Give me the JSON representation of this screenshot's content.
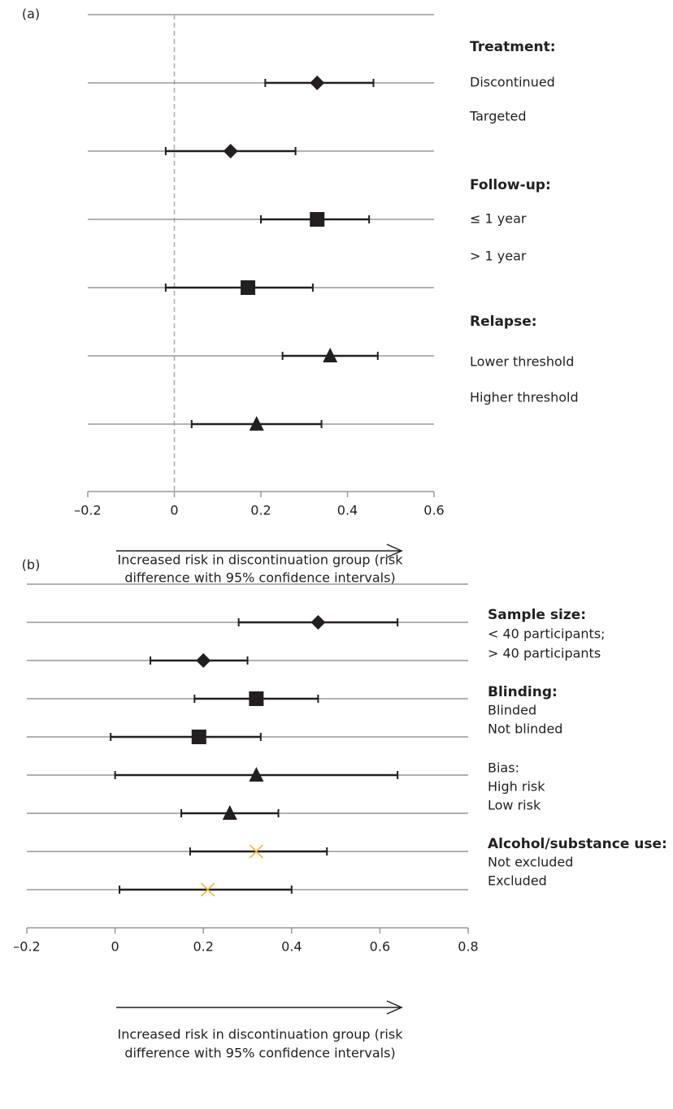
{
  "chart_data": [
    {
      "type": "forest",
      "panel_label": "(a)",
      "values": [
        0.33,
        0.13,
        0.33,
        0.17,
        0.36,
        0.19
      ],
      "lower": [
        0.21,
        -0.02,
        0.2,
        -0.02,
        0.25,
        0.04
      ],
      "upper": [
        0.46,
        0.28,
        0.45,
        0.32,
        0.47,
        0.34
      ],
      "markers": [
        "diamond",
        "diamond",
        "square",
        "square",
        "triangle",
        "triangle"
      ],
      "colors": [
        "#231f20",
        "#231f20",
        "#231f20",
        "#231f20",
        "#231f20",
        "#231f20"
      ],
      "xlim": [
        -0.2,
        0.6
      ],
      "xticks": [
        {
          "value": -0.2,
          "label": "–0.2"
        },
        0,
        0.2,
        0.4,
        0.6
      ],
      "refline": 0,
      "groups": [
        {
          "title": "Treatment:",
          "bold": true,
          "items": [
            "Discontinued",
            "Targeted"
          ]
        },
        {
          "title": "Follow-up:",
          "bold": true,
          "items": [
            "≤ 1 year",
            "> 1 year"
          ]
        },
        {
          "title": "Relapse:",
          "bold": true,
          "items": [
            "Lower threshold",
            "Higher threshold"
          ]
        }
      ],
      "xlabel": [
        "Increased risk in discontinuation group (risk",
        "difference with 95% confidence intervals)"
      ]
    },
    {
      "type": "forest",
      "panel_label": "(b)",
      "values": [
        0.46,
        0.2,
        0.32,
        0.19,
        0.32,
        0.26,
        0.32,
        0.21
      ],
      "lower": [
        0.28,
        0.08,
        0.18,
        -0.01,
        0.0,
        0.15,
        0.17,
        0.01
      ],
      "upper": [
        0.64,
        0.3,
        0.46,
        0.33,
        0.64,
        0.37,
        0.48,
        0.4
      ],
      "markers": [
        "diamond",
        "diamond",
        "square",
        "square",
        "triangle",
        "triangle",
        "x",
        "x"
      ],
      "colors": [
        "#231f20",
        "#231f20",
        "#231f20",
        "#231f20",
        "#231f20",
        "#231f20",
        "#f2b01e",
        "#f2b01e"
      ],
      "xlim": [
        -0.2,
        0.8
      ],
      "xticks": [
        {
          "value": -0.2,
          "label": "–0.2"
        },
        0,
        0.2,
        0.4,
        0.6,
        0.8
      ],
      "groups": [
        {
          "title": "Sample size:",
          "bold": true,
          "items": [
            "< 40 participants;",
            "> 40 participants"
          ]
        },
        {
          "title": "Blinding:",
          "bold": true,
          "items": [
            "Blinded",
            "Not blinded"
          ]
        },
        {
          "title": "Bias:",
          "bold": false,
          "items": [
            "High risk",
            "Low risk"
          ]
        },
        {
          "title": "Alcohol/substance use:",
          "bold": true,
          "items": [
            "Not excluded",
            "Excluded"
          ]
        }
      ],
      "xlabel": [
        "Increased risk in discontinuation group (risk",
        "difference with 95% confidence intervals)"
      ]
    }
  ]
}
